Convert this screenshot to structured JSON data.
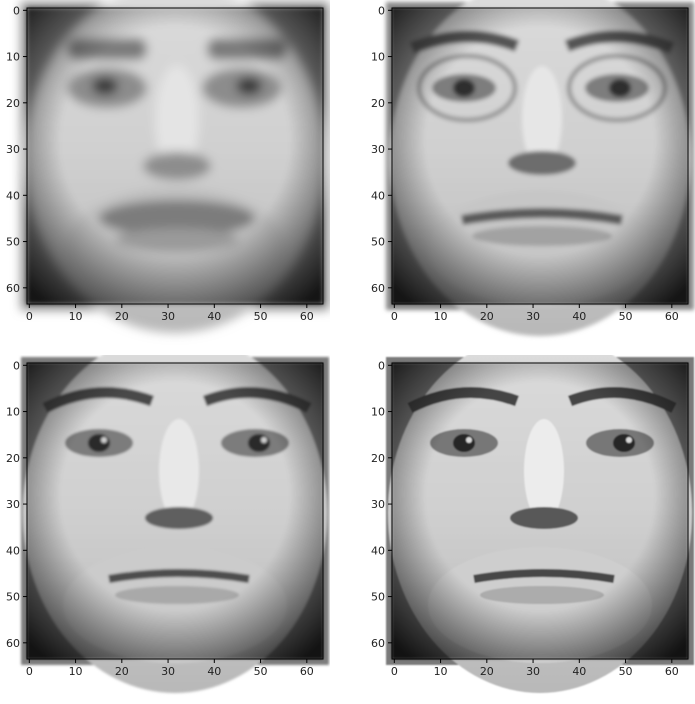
{
  "figure": {
    "panels": [
      {
        "image_description": "blurry averaged grayscale face, soft features",
        "x_ticks": [
          "0",
          "10",
          "20",
          "30",
          "40",
          "50",
          "60"
        ],
        "y_ticks": [
          "0",
          "10",
          "20",
          "30",
          "40",
          "50",
          "60"
        ]
      },
      {
        "image_description": "grayscale face reconstruction with faint eyeglass outlines",
        "x_ticks": [
          "0",
          "10",
          "20",
          "30",
          "40",
          "50",
          "60"
        ],
        "y_ticks": [
          "0",
          "10",
          "20",
          "30",
          "40",
          "50",
          "60"
        ]
      },
      {
        "image_description": "sharper grayscale face reconstruction",
        "x_ticks": [
          "0",
          "10",
          "20",
          "30",
          "40",
          "50",
          "60"
        ],
        "y_ticks": [
          "0",
          "10",
          "20",
          "30",
          "40",
          "50",
          "60"
        ]
      },
      {
        "image_description": "clear grayscale face, distinct eyes and mouth",
        "x_ticks": [
          "0",
          "10",
          "20",
          "30",
          "40",
          "50",
          "60"
        ],
        "y_ticks": [
          "0",
          "10",
          "20",
          "30",
          "40",
          "50",
          "60"
        ]
      }
    ],
    "image_extent": [
      0,
      63
    ],
    "colormap": "gray"
  }
}
